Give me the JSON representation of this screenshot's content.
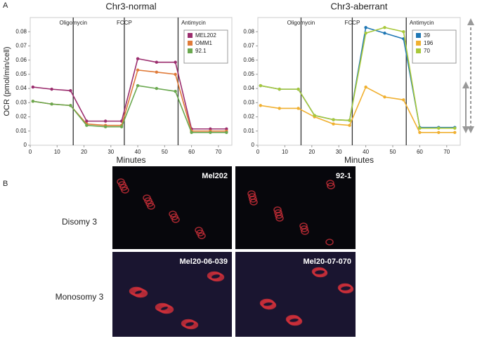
{
  "panel_labels": [
    "A",
    "B"
  ],
  "chart_data": [
    {
      "type": "line",
      "title": "Chr3-normal",
      "xlabel": "Minutes",
      "ylabel": "OCR (pmol/min/cell)",
      "x": [
        1,
        8,
        15,
        21,
        28,
        34,
        40,
        47,
        54,
        60,
        67,
        73
      ],
      "xlim": [
        0,
        75
      ],
      "xticks": [
        0,
        10,
        20,
        30,
        40,
        50,
        60,
        70
      ],
      "ylim": [
        0,
        0.09
      ],
      "yticks": [
        0,
        0.01,
        0.02,
        0.03,
        0.04,
        0.05,
        0.06,
        0.07,
        0.08
      ],
      "annotations": [
        {
          "x": 16,
          "label": "Oligomycin"
        },
        {
          "x": 35,
          "label": "FCCP"
        },
        {
          "x": 55,
          "label": "Antimycin"
        }
      ],
      "series": [
        {
          "name": "MEL202",
          "color": "#9b2d6e",
          "values": [
            0.041,
            0.0395,
            0.0385,
            0.017,
            0.017,
            0.017,
            0.061,
            0.0585,
            0.0585,
            0.0115,
            0.0115,
            0.0115
          ]
        },
        {
          "name": "OMM1",
          "color": "#e07b39",
          "values": [
            0.031,
            0.029,
            0.028,
            0.015,
            0.014,
            0.014,
            0.053,
            0.0515,
            0.05,
            0.01,
            0.01,
            0.01
          ]
        },
        {
          "name": "92.1",
          "color": "#6aa84f",
          "values": [
            0.031,
            0.029,
            0.028,
            0.014,
            0.013,
            0.013,
            0.042,
            0.04,
            0.038,
            0.009,
            0.009,
            0.009
          ]
        }
      ]
    },
    {
      "type": "line",
      "title": "Chr3-aberrant",
      "xlabel": "Minutes",
      "x": [
        1,
        8,
        15,
        21,
        28,
        34,
        40,
        47,
        54,
        60,
        67,
        73
      ],
      "xlim": [
        0,
        75
      ],
      "xticks": [
        0,
        10,
        20,
        30,
        40,
        50,
        60,
        70
      ],
      "ylim": [
        0,
        0.09
      ],
      "yticks": [
        0,
        0.01,
        0.02,
        0.03,
        0.04,
        0.05,
        0.06,
        0.07,
        0.08
      ],
      "annotations": [
        {
          "x": 16,
          "label": "Oligomycin"
        },
        {
          "x": 35,
          "label": "FCCP"
        },
        {
          "x": 55,
          "label": "Antimycin"
        }
      ],
      "series": [
        {
          "name": "39",
          "color": "#1f77b4",
          "values": [
            0.042,
            0.0395,
            0.0395,
            0.021,
            0.018,
            0.0175,
            0.083,
            0.079,
            0.075,
            0.0125,
            0.0125,
            0.0125
          ]
        },
        {
          "name": "196",
          "color": "#f0b030",
          "values": [
            0.028,
            0.026,
            0.026,
            0.02,
            0.015,
            0.014,
            0.041,
            0.034,
            0.032,
            0.009,
            0.009,
            0.009
          ]
        },
        {
          "name": "70",
          "color": "#a8c83a",
          "values": [
            0.042,
            0.0395,
            0.0395,
            0.021,
            0.018,
            0.0175,
            0.079,
            0.083,
            0.08,
            0.012,
            0.012,
            0.012
          ]
        }
      ]
    }
  ],
  "panel_b": {
    "rows": [
      "Disomy 3",
      "Monosomy 3"
    ],
    "images": [
      {
        "label": "Mel202"
      },
      {
        "label": "92-1"
      },
      {
        "label": "Mel20-06-039"
      },
      {
        "label": "Mel20-07-070"
      }
    ]
  }
}
